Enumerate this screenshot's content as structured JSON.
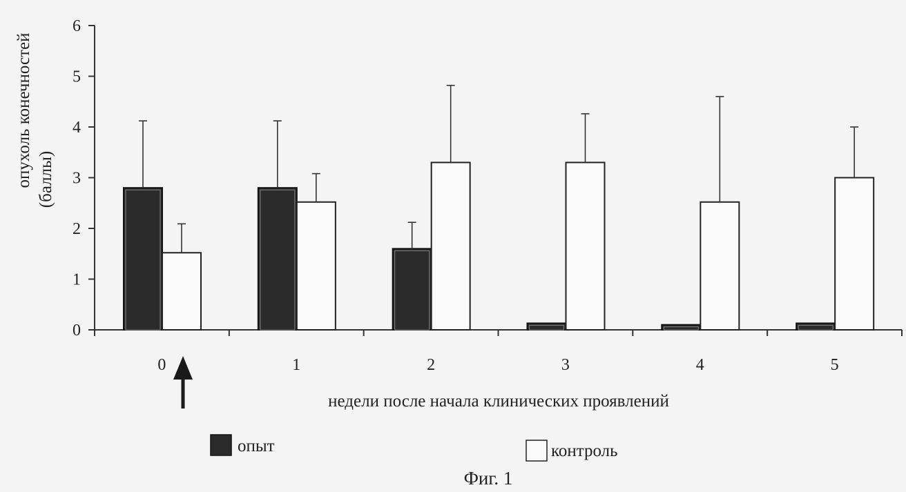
{
  "chart_data": {
    "type": "bar",
    "categories": [
      "0",
      "1",
      "2",
      "3",
      "4",
      "5"
    ],
    "series": [
      {
        "name": "опыт",
        "color": "#2b2b2b",
        "values": [
          2.8,
          2.8,
          1.6,
          0.13,
          0.1,
          0.13
        ],
        "errors": [
          1.32,
          1.32,
          0.52,
          0,
          0,
          0
        ]
      },
      {
        "name": "контроль",
        "color": "#fafafa",
        "values": [
          1.52,
          2.52,
          3.3,
          3.3,
          2.52,
          3.0
        ],
        "errors": [
          0.57,
          0.56,
          1.52,
          0.96,
          2.08,
          1.0
        ]
      }
    ],
    "ylim": [
      0,
      6
    ],
    "yticks": [
      "0",
      "1",
      "2",
      "3",
      "4",
      "5",
      "6"
    ],
    "xlabel": "недели после начала клинических проявлений",
    "ylabel_line1": "опухоль конечностей",
    "ylabel_line2": "(баллы)",
    "legend_position": "bottom",
    "annotation": "upward arrow under week 0",
    "grid": false
  },
  "caption": "Фиг. 1"
}
